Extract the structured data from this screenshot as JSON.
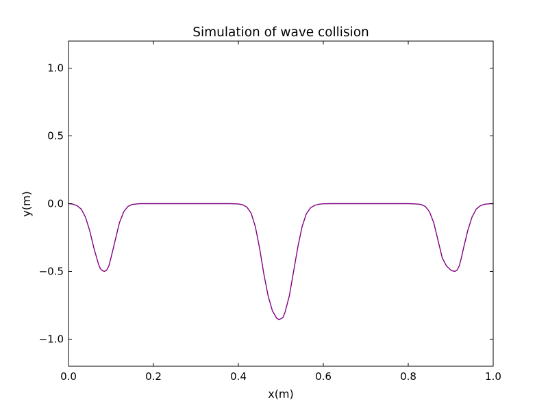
{
  "chart_data": {
    "type": "line",
    "title": "Simulation of wave collision",
    "xlabel": "x(m)",
    "ylabel": "y(m)",
    "xlim": [
      0.0,
      1.0
    ],
    "ylim": [
      -1.2,
      1.2
    ],
    "grid": false,
    "legend": "none",
    "x_ticks": [
      0.0,
      0.2,
      0.4,
      0.6,
      0.8,
      1.0
    ],
    "x_tick_labels": [
      "0.0",
      "0.2",
      "0.4",
      "0.6",
      "0.8",
      "1.0"
    ],
    "y_ticks": [
      1.0,
      0.5,
      0.0,
      -0.5,
      -1.0
    ],
    "y_tick_labels": [
      "1.0",
      "0.5",
      "0.0",
      "−0.5",
      "−1.0"
    ],
    "series": [
      {
        "color": "#800080",
        "x": [
          0.0,
          0.01,
          0.02,
          0.03,
          0.04,
          0.05,
          0.06,
          0.07,
          0.075,
          0.08,
          0.085,
          0.09,
          0.095,
          0.1,
          0.11,
          0.12,
          0.13,
          0.14,
          0.15,
          0.16,
          0.17,
          0.18,
          0.2,
          0.25,
          0.3,
          0.35,
          0.38,
          0.4,
          0.41,
          0.42,
          0.43,
          0.44,
          0.45,
          0.46,
          0.47,
          0.48,
          0.49,
          0.495,
          0.5,
          0.505,
          0.51,
          0.52,
          0.53,
          0.54,
          0.55,
          0.56,
          0.57,
          0.58,
          0.59,
          0.6,
          0.62,
          0.65,
          0.7,
          0.75,
          0.8,
          0.82,
          0.83,
          0.84,
          0.85,
          0.86,
          0.87,
          0.88,
          0.89,
          0.9,
          0.905,
          0.91,
          0.915,
          0.92,
          0.925,
          0.93,
          0.94,
          0.95,
          0.96,
          0.97,
          0.98,
          0.99,
          1.0
        ],
        "y": [
          0.0,
          -0.003,
          -0.015,
          -0.04,
          -0.1,
          -0.2,
          -0.33,
          -0.44,
          -0.48,
          -0.495,
          -0.5,
          -0.49,
          -0.46,
          -0.4,
          -0.27,
          -0.14,
          -0.06,
          -0.02,
          -0.006,
          -0.002,
          0.0,
          0.0,
          0.0,
          0.0,
          0.0,
          0.0,
          0.0,
          -0.002,
          -0.008,
          -0.025,
          -0.07,
          -0.17,
          -0.33,
          -0.52,
          -0.68,
          -0.79,
          -0.845,
          -0.855,
          -0.85,
          -0.84,
          -0.8,
          -0.68,
          -0.5,
          -0.32,
          -0.17,
          -0.075,
          -0.03,
          -0.012,
          -0.004,
          -0.001,
          0.0,
          0.0,
          0.0,
          0.0,
          0.0,
          -0.002,
          -0.006,
          -0.02,
          -0.06,
          -0.14,
          -0.27,
          -0.4,
          -0.46,
          -0.49,
          -0.497,
          -0.5,
          -0.49,
          -0.46,
          -0.4,
          -0.33,
          -0.2,
          -0.1,
          -0.04,
          -0.015,
          -0.004,
          -0.001,
          0.0
        ]
      }
    ]
  }
}
